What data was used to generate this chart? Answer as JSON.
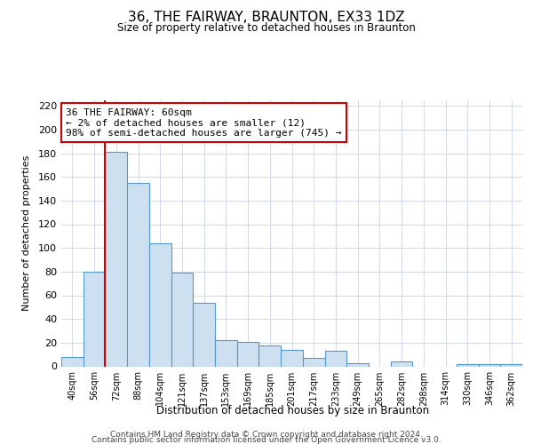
{
  "title": "36, THE FAIRWAY, BRAUNTON, EX33 1DZ",
  "subtitle": "Size of property relative to detached houses in Braunton",
  "xlabel": "Distribution of detached houses by size in Braunton",
  "ylabel": "Number of detached properties",
  "bar_labels": [
    "40sqm",
    "56sqm",
    "72sqm",
    "88sqm",
    "104sqm",
    "121sqm",
    "137sqm",
    "153sqm",
    "169sqm",
    "185sqm",
    "201sqm",
    "217sqm",
    "233sqm",
    "249sqm",
    "265sqm",
    "282sqm",
    "298sqm",
    "314sqm",
    "330sqm",
    "346sqm",
    "362sqm"
  ],
  "bar_values": [
    8,
    80,
    181,
    155,
    104,
    79,
    54,
    22,
    21,
    18,
    14,
    7,
    13,
    3,
    0,
    4,
    0,
    0,
    2,
    2,
    2
  ],
  "bar_color": "#cce0f0",
  "bar_edge_color": "#5599cc",
  "highlight_line_color": "#cc0000",
  "annotation_line1": "36 THE FAIRWAY: 60sqm",
  "annotation_line2": "← 2% of detached houses are smaller (12)",
  "annotation_line3": "98% of semi-detached houses are larger (745) →",
  "annotation_box_color": "#ffffff",
  "annotation_box_edge_color": "#cc0000",
  "ylim": [
    0,
    225
  ],
  "yticks": [
    0,
    20,
    40,
    60,
    80,
    100,
    120,
    140,
    160,
    180,
    200,
    220
  ],
  "footer_line1": "Contains HM Land Registry data © Crown copyright and database right 2024.",
  "footer_line2": "Contains public sector information licensed under the Open Government Licence v3.0.",
  "bg_color": "#ffffff",
  "grid_color": "#d0d8e8"
}
